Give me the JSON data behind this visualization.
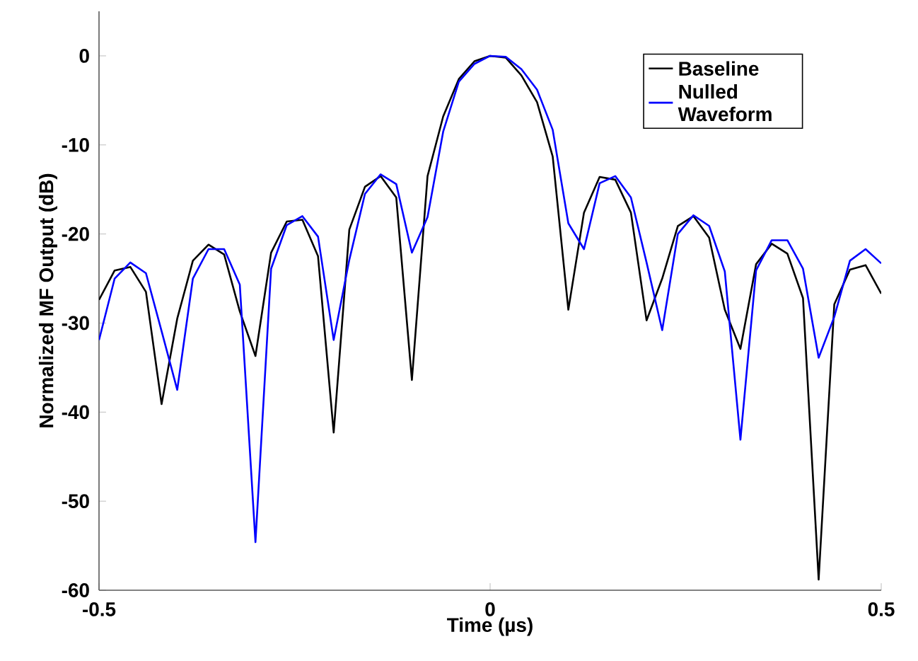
{
  "chart_data": {
    "type": "line",
    "xlabel": "Time (µs)",
    "ylabel": "Normalized MF Output (dB)",
    "x": [
      -0.5,
      -0.48,
      -0.46,
      -0.44,
      -0.42,
      -0.4,
      -0.38,
      -0.36,
      -0.34,
      -0.32,
      -0.3,
      -0.28,
      -0.26,
      -0.24,
      -0.22,
      -0.2,
      -0.18,
      -0.16,
      -0.14,
      -0.12,
      -0.1,
      -0.08,
      -0.06,
      -0.04,
      -0.02,
      0,
      0.02,
      0.04,
      0.06,
      0.08,
      0.1,
      0.12,
      0.14,
      0.16,
      0.18,
      0.2,
      0.22,
      0.24,
      0.26,
      0.28,
      0.3,
      0.32,
      0.34,
      0.36,
      0.38,
      0.4,
      0.42,
      0.44,
      0.46,
      0.48,
      0.5
    ],
    "series": [
      {
        "name": "Baseline",
        "color": "#000000",
        "values": [
          -27.4,
          -24.1,
          -23.7,
          -26.5,
          -39.1,
          -29.5,
          -23.0,
          -21.2,
          -22.3,
          -28.7,
          -33.7,
          -22.1,
          -18.6,
          -18.4,
          -22.5,
          -42.3,
          -19.5,
          -14.7,
          -13.5,
          -15.9,
          -36.4,
          -13.5,
          -6.8,
          -2.6,
          -0.6,
          0,
          -0.2,
          -2.2,
          -5.2,
          -11.3,
          -28.5,
          -17.6,
          -13.6,
          -13.9,
          -17.6,
          -29.7,
          -25.0,
          -19.1,
          -18.0,
          -20.4,
          -28.5,
          -32.9,
          -23.4,
          -21.1,
          -22.2,
          -27.2,
          -58.8,
          -27.9,
          -24.0,
          -23.5,
          -26.7
        ]
      },
      {
        "name": "Nulled Waveform",
        "color": "#0000ff",
        "values": [
          -31.9,
          -25.0,
          -23.2,
          -24.4,
          -30.9,
          -37.5,
          -25.0,
          -21.7,
          -21.7,
          -25.7,
          -54.6,
          -23.9,
          -19.0,
          -18.0,
          -20.3,
          -31.9,
          -22.9,
          -15.5,
          -13.3,
          -14.4,
          -22.1,
          -18.1,
          -8.5,
          -2.9,
          -0.9,
          0,
          -0.1,
          -1.5,
          -3.8,
          -8.3,
          -18.8,
          -21.7,
          -14.3,
          -13.5,
          -15.9,
          -23.2,
          -30.8,
          -20.0,
          -17.9,
          -19.1,
          -24.2,
          -43.1,
          -24.1,
          -20.7,
          -20.7,
          -23.9,
          -33.9,
          -29.3,
          -23.0,
          -21.7,
          -23.3
        ]
      }
    ],
    "xlim": [
      -0.5,
      0.5
    ],
    "xticks": [
      -0.5,
      0,
      0.5
    ],
    "ylim": [
      -60,
      5
    ],
    "yticks": [
      -60,
      -50,
      -40,
      -30,
      -20,
      -10,
      0
    ],
    "grid": false,
    "legend": "top right",
    "marker": "none",
    "line_style": "solid"
  }
}
